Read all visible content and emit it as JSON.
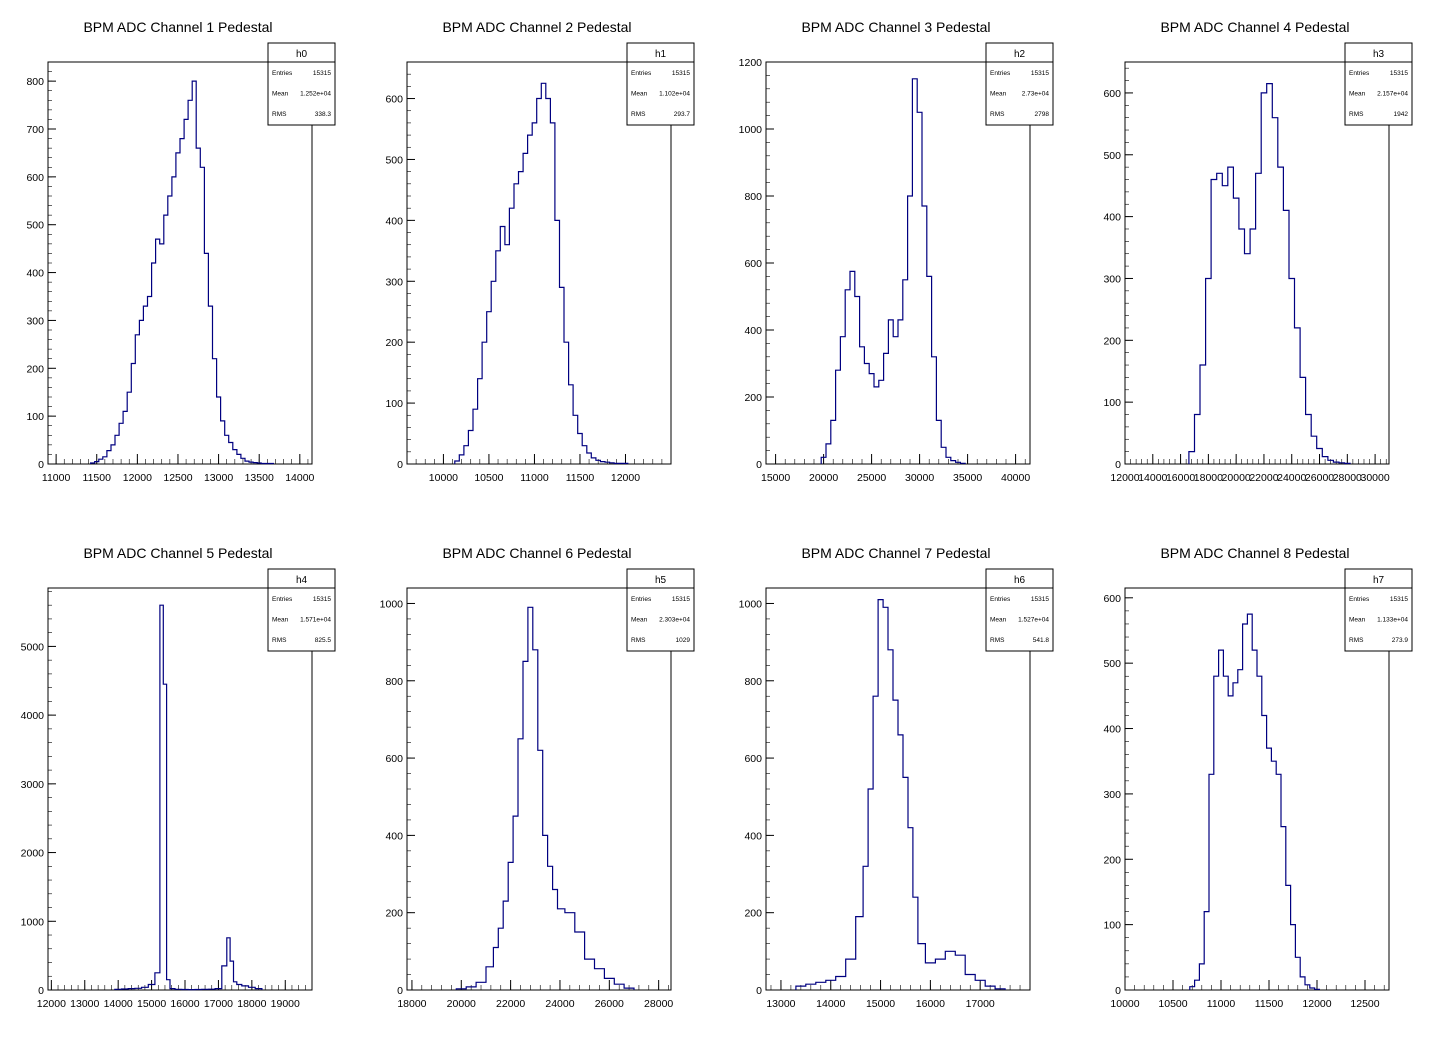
{
  "chart_data": [
    {
      "type": "bar",
      "title": "BPM ADC Channel 1 Pedestal",
      "stats": {
        "name": "h0",
        "rows": [
          [
            "Entries",
            "15315"
          ],
          [
            "Mean",
            "1.252e+04"
          ],
          [
            "RMS",
            "338.3"
          ]
        ]
      },
      "xlim": [
        10900,
        14150
      ],
      "ylim": [
        0,
        840
      ],
      "xticks": [
        11000,
        11500,
        12000,
        12500,
        13000,
        13500,
        14000
      ],
      "yticks": [
        0,
        100,
        200,
        300,
        400,
        500,
        600,
        700,
        800
      ],
      "color": "#000080",
      "x": [
        11450,
        11500,
        11550,
        11600,
        11650,
        11700,
        11750,
        11800,
        11850,
        11900,
        11950,
        12000,
        12050,
        12100,
        12150,
        12200,
        12250,
        12300,
        12350,
        12400,
        12450,
        12500,
        12550,
        12600,
        12650,
        12700,
        12750,
        12800,
        12850,
        12900,
        12950,
        13000,
        13050,
        13100,
        13150,
        13200,
        13250,
        13300,
        13350,
        13400,
        13450,
        13500,
        13550,
        13600,
        13650
      ],
      "values": [
        2,
        5,
        10,
        15,
        28,
        40,
        60,
        85,
        110,
        150,
        210,
        270,
        300,
        330,
        350,
        420,
        470,
        460,
        520,
        560,
        600,
        650,
        680,
        720,
        760,
        800,
        660,
        620,
        440,
        330,
        220,
        140,
        90,
        60,
        45,
        30,
        20,
        12,
        6,
        4,
        3,
        2,
        1,
        1,
        1
      ]
    },
    {
      "type": "bar",
      "title": "BPM ADC Channel 2 Pedestal",
      "stats": {
        "name": "h1",
        "rows": [
          [
            "Entries",
            "15315"
          ],
          [
            "Mean",
            "1.102e+04"
          ],
          [
            "RMS",
            "293.7"
          ]
        ]
      },
      "xlim": [
        9600,
        12500
      ],
      "ylim": [
        0,
        660
      ],
      "xticks": [
        10000,
        10500,
        11000,
        11500,
        12000
      ],
      "yticks": [
        0,
        100,
        200,
        300,
        400,
        500,
        600
      ],
      "color": "#000080",
      "x": [
        10150,
        10200,
        10250,
        10300,
        10350,
        10400,
        10450,
        10500,
        10550,
        10600,
        10650,
        10700,
        10750,
        10800,
        10850,
        10900,
        10950,
        11000,
        11050,
        11100,
        11150,
        11200,
        11250,
        11300,
        11350,
        11400,
        11450,
        11500,
        11550,
        11600,
        11650,
        11700,
        11750,
        11800,
        11850,
        11900,
        11950,
        12000
      ],
      "values": [
        5,
        15,
        30,
        55,
        90,
        140,
        200,
        250,
        300,
        350,
        390,
        360,
        420,
        460,
        480,
        510,
        540,
        560,
        600,
        625,
        600,
        560,
        400,
        290,
        200,
        130,
        80,
        50,
        30,
        18,
        10,
        6,
        4,
        3,
        2,
        1,
        1,
        1
      ]
    },
    {
      "type": "bar",
      "title": "BPM ADC Channel 3 Pedestal",
      "stats": {
        "name": "h2",
        "rows": [
          [
            "Entries",
            "15315"
          ],
          [
            "Mean",
            "2.73e+04"
          ],
          [
            "RMS",
            "2798"
          ]
        ]
      },
      "xlim": [
        14000,
        41500
      ],
      "ylim": [
        0,
        1200
      ],
      "xticks": [
        15000,
        20000,
        25000,
        30000,
        35000,
        40000
      ],
      "yticks": [
        0,
        200,
        400,
        600,
        800,
        1000,
        1200
      ],
      "color": "#000080",
      "x": [
        20000,
        20500,
        21000,
        21500,
        22000,
        22500,
        23000,
        23500,
        24000,
        24500,
        25000,
        25500,
        26000,
        26500,
        27000,
        27500,
        28000,
        28500,
        29000,
        29500,
        30000,
        30500,
        31000,
        31500,
        32000,
        32500,
        33000,
        33500,
        34000,
        34500
      ],
      "values": [
        20,
        60,
        130,
        280,
        380,
        520,
        575,
        500,
        350,
        300,
        270,
        230,
        250,
        330,
        430,
        380,
        430,
        550,
        800,
        1150,
        1050,
        770,
        560,
        320,
        130,
        50,
        20,
        10,
        5,
        2
      ]
    },
    {
      "type": "bar",
      "title": "BPM ADC Channel 4 Pedestal",
      "stats": {
        "name": "h3",
        "rows": [
          [
            "Entries",
            "15315"
          ],
          [
            "Mean",
            "2.157e+04"
          ],
          [
            "RMS",
            "1942"
          ]
        ]
      },
      "xlim": [
        12000,
        31000
      ],
      "ylim": [
        0,
        650
      ],
      "xticks": [
        12000,
        14000,
        16000,
        18000,
        20000,
        22000,
        24000,
        26000,
        28000,
        30000
      ],
      "yticks": [
        0,
        100,
        200,
        300,
        400,
        500,
        600
      ],
      "color": "#000080",
      "x": [
        16800,
        17200,
        17600,
        18000,
        18400,
        18800,
        19200,
        19600,
        20000,
        20400,
        20800,
        21200,
        21600,
        22000,
        22400,
        22800,
        23200,
        23600,
        24000,
        24400,
        24800,
        25200,
        25600,
        26000,
        26400,
        26800,
        27200,
        27600,
        28000
      ],
      "values": [
        20,
        80,
        160,
        300,
        460,
        470,
        450,
        480,
        430,
        380,
        340,
        380,
        470,
        600,
        615,
        560,
        480,
        410,
        300,
        220,
        140,
        80,
        45,
        25,
        12,
        6,
        3,
        2,
        1
      ]
    },
    {
      "type": "bar",
      "title": "BPM ADC Channel 5 Pedestal",
      "stats": {
        "name": "h4",
        "rows": [
          [
            "Entries",
            "15315"
          ],
          [
            "Mean",
            "1.571e+04"
          ],
          [
            "RMS",
            "825.5"
          ]
        ]
      },
      "xlim": [
        11900,
        19800
      ],
      "ylim": [
        0,
        5850
      ],
      "xticks": [
        12000,
        13000,
        14000,
        15000,
        16000,
        17000,
        18000,
        19000
      ],
      "yticks": [
        0,
        1000,
        2000,
        3000,
        4000,
        5000
      ],
      "color": "#000080",
      "x": [
        14000,
        14200,
        14400,
        14600,
        14800,
        15000,
        15200,
        15300,
        15400,
        15500,
        15600,
        15800,
        16000,
        16200,
        16400,
        16600,
        16800,
        17000,
        17200,
        17300,
        17400,
        17500,
        17600,
        17800,
        18000,
        18200
      ],
      "values": [
        10,
        15,
        20,
        25,
        40,
        80,
        250,
        5600,
        4450,
        150,
        20,
        10,
        8,
        6,
        8,
        10,
        12,
        20,
        350,
        760,
        420,
        120,
        80,
        60,
        40,
        20
      ]
    },
    {
      "type": "bar",
      "title": "BPM ADC Channel 6 Pedestal",
      "stats": {
        "name": "h5",
        "rows": [
          [
            "Entries",
            "15315"
          ],
          [
            "Mean",
            "2.303e+04"
          ],
          [
            "RMS",
            "1029"
          ]
        ]
      },
      "xlim": [
        17800,
        28500
      ],
      "ylim": [
        0,
        1040
      ],
      "xticks": [
        18000,
        20000,
        22000,
        24000,
        26000,
        28000
      ],
      "yticks": [
        0,
        200,
        400,
        600,
        800,
        1000
      ],
      "color": "#000080",
      "x": [
        20000,
        20400,
        20800,
        21200,
        21400,
        21600,
        21800,
        22000,
        22200,
        22400,
        22600,
        22800,
        23000,
        23200,
        23400,
        23600,
        23800,
        24000,
        24400,
        24800,
        25200,
        25600,
        26000,
        26400,
        26800
      ],
      "values": [
        3,
        8,
        20,
        60,
        110,
        160,
        230,
        330,
        450,
        650,
        850,
        990,
        880,
        620,
        400,
        320,
        260,
        210,
        200,
        150,
        80,
        55,
        30,
        15,
        5
      ]
    },
    {
      "type": "bar",
      "title": "BPM ADC Channel 7 Pedestal",
      "stats": {
        "name": "h6",
        "rows": [
          [
            "Entries",
            "15315"
          ],
          [
            "Mean",
            "1.527e+04"
          ],
          [
            "RMS",
            "541.8"
          ]
        ]
      },
      "xlim": [
        12700,
        18000
      ],
      "ylim": [
        0,
        1040
      ],
      "xticks": [
        13000,
        14000,
        15000,
        16000,
        17000
      ],
      "yticks": [
        0,
        200,
        400,
        600,
        800,
        1000
      ],
      "color": "#000080",
      "x": [
        13400,
        13600,
        13800,
        14000,
        14200,
        14400,
        14600,
        14700,
        14800,
        14900,
        15000,
        15100,
        15200,
        15300,
        15400,
        15500,
        15600,
        15700,
        15800,
        16000,
        16200,
        16400,
        16600,
        16800,
        17000,
        17200,
        17400
      ],
      "values": [
        10,
        15,
        20,
        25,
        35,
        80,
        190,
        320,
        520,
        760,
        1010,
        990,
        880,
        750,
        660,
        550,
        420,
        240,
        120,
        70,
        80,
        100,
        90,
        40,
        25,
        10,
        3
      ]
    },
    {
      "type": "bar",
      "title": "BPM ADC Channel 8 Pedestal",
      "stats": {
        "name": "h7",
        "rows": [
          [
            "Entries",
            "15315"
          ],
          [
            "Mean",
            "1.133e+04"
          ],
          [
            "RMS",
            "273.9"
          ]
        ]
      },
      "xlim": [
        10000,
        12750
      ],
      "ylim": [
        0,
        615
      ],
      "xticks": [
        10000,
        10500,
        11000,
        11500,
        12000,
        12500
      ],
      "yticks": [
        0,
        100,
        200,
        300,
        400,
        500,
        600
      ],
      "color": "#000080",
      "x": [
        10700,
        10750,
        10800,
        10850,
        10900,
        10950,
        11000,
        11050,
        11100,
        11150,
        11200,
        11250,
        11300,
        11350,
        11400,
        11450,
        11500,
        11550,
        11600,
        11650,
        11700,
        11750,
        11800,
        11850,
        11900,
        11950,
        12000
      ],
      "values": [
        5,
        15,
        40,
        120,
        330,
        480,
        520,
        480,
        450,
        470,
        490,
        560,
        575,
        520,
        480,
        420,
        370,
        350,
        330,
        250,
        160,
        100,
        50,
        20,
        8,
        3,
        1
      ]
    }
  ]
}
